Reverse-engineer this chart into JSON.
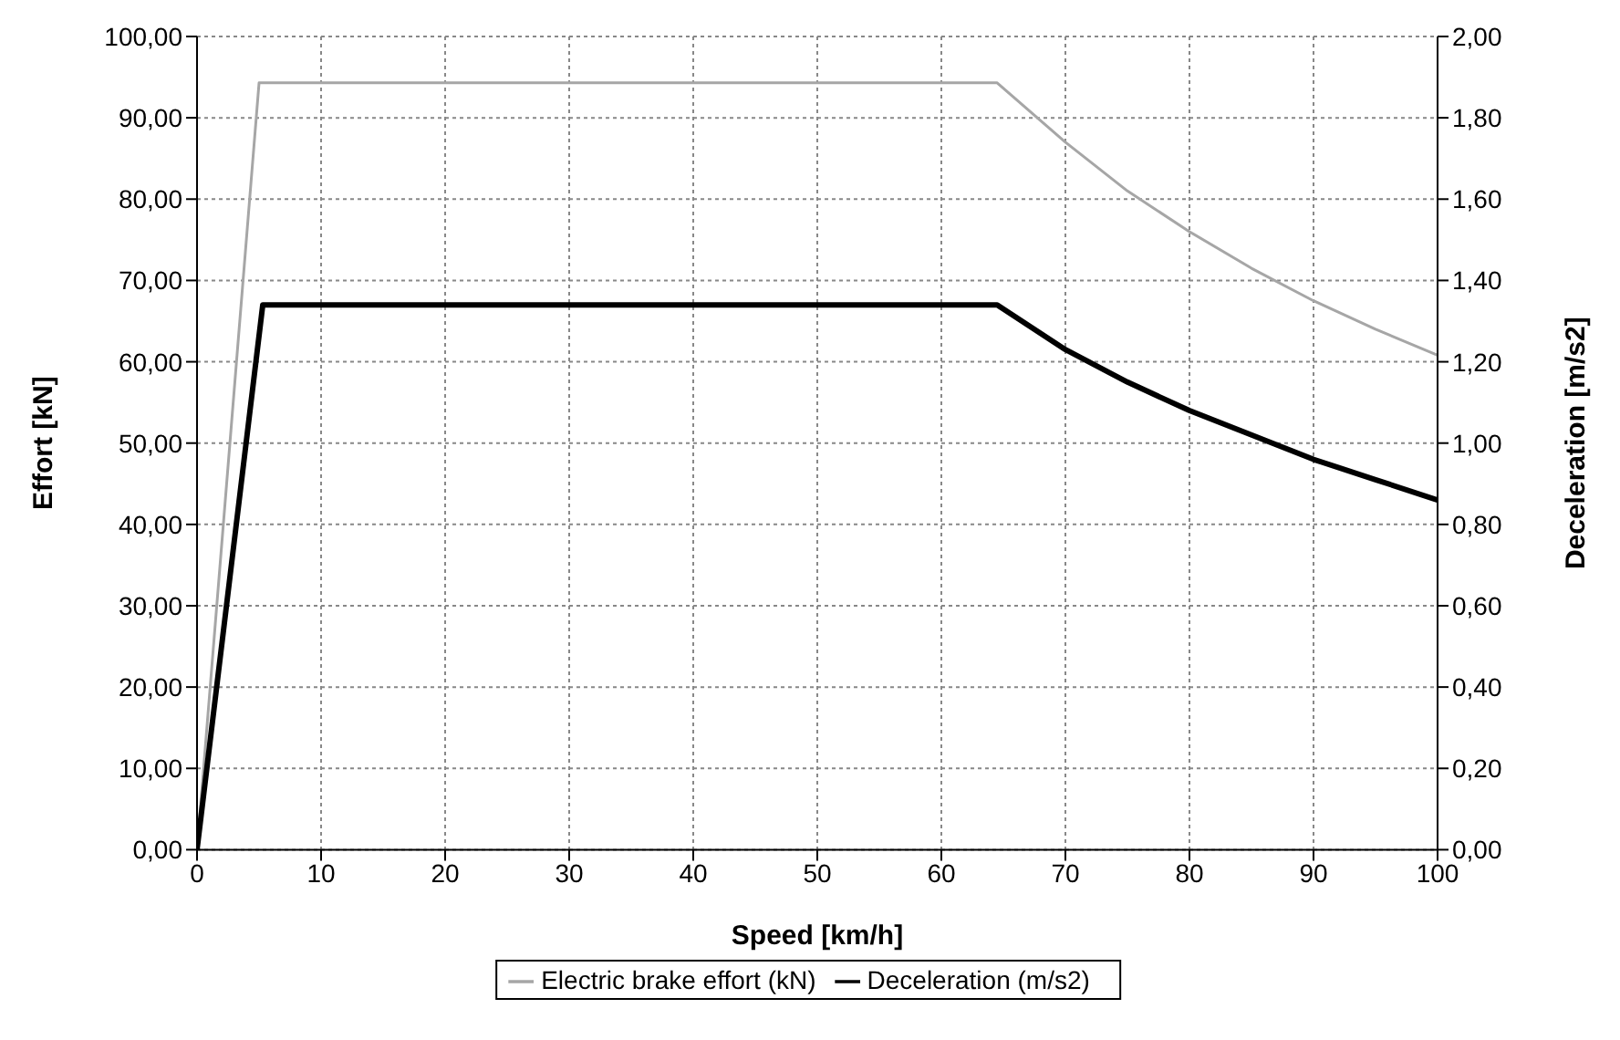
{
  "chart_data": {
    "type": "line",
    "xlabel": "Speed [km/h]",
    "ylabel": "Effort [kN]",
    "y2label": "Deceleration [m/s2]",
    "xlim": [
      0,
      100
    ],
    "xticks": [
      0,
      10,
      20,
      30,
      40,
      50,
      60,
      70,
      80,
      90,
      100
    ],
    "ylim": [
      0,
      100
    ],
    "yticks": [
      {
        "value": 0,
        "label": "0,00"
      },
      {
        "value": 10,
        "label": "10,00"
      },
      {
        "value": 20,
        "label": "20,00"
      },
      {
        "value": 30,
        "label": "30,00"
      },
      {
        "value": 40,
        "label": "40,00"
      },
      {
        "value": 50,
        "label": "50,00"
      },
      {
        "value": 60,
        "label": "60,00"
      },
      {
        "value": 70,
        "label": "70,00"
      },
      {
        "value": 80,
        "label": "80,00"
      },
      {
        "value": 90,
        "label": "90,00"
      },
      {
        "value": 100,
        "label": "100,00"
      }
    ],
    "y2lim": [
      0,
      2
    ],
    "y2ticks": [
      {
        "value": 0,
        "label": "0,00"
      },
      {
        "value": 0.2,
        "label": "0,20"
      },
      {
        "value": 0.4,
        "label": "0,40"
      },
      {
        "value": 0.6,
        "label": "0,60"
      },
      {
        "value": 0.8,
        "label": "0,80"
      },
      {
        "value": 1,
        "label": "1,00"
      },
      {
        "value": 1.2,
        "label": "1,20"
      },
      {
        "value": 1.4,
        "label": "1,40"
      },
      {
        "value": 1.6,
        "label": "1,60"
      },
      {
        "value": 1.8,
        "label": "1,80"
      },
      {
        "value": 2,
        "label": "2,00"
      }
    ],
    "grid": true,
    "legend": "bottom",
    "marker": "none",
    "series": [
      {
        "name": "Electric brake effort (kN)",
        "color": "#a6a6a6",
        "x": [
          0,
          5,
          64.5,
          70,
          75,
          80,
          85,
          90,
          95,
          100
        ],
        "values": [
          0,
          94.3,
          94.3,
          87,
          81,
          76,
          71.5,
          67.5,
          64,
          60.8
        ]
      },
      {
        "name": "Deceleration (m/s2)",
        "color": "#000000",
        "axis": "y2",
        "x": [
          0,
          5.3,
          64.5,
          70,
          75,
          80,
          85,
          90,
          95,
          100
        ],
        "values": [
          0,
          1.34,
          1.34,
          1.23,
          1.15,
          1.08,
          1.02,
          0.96,
          0.91,
          0.86
        ]
      }
    ]
  }
}
